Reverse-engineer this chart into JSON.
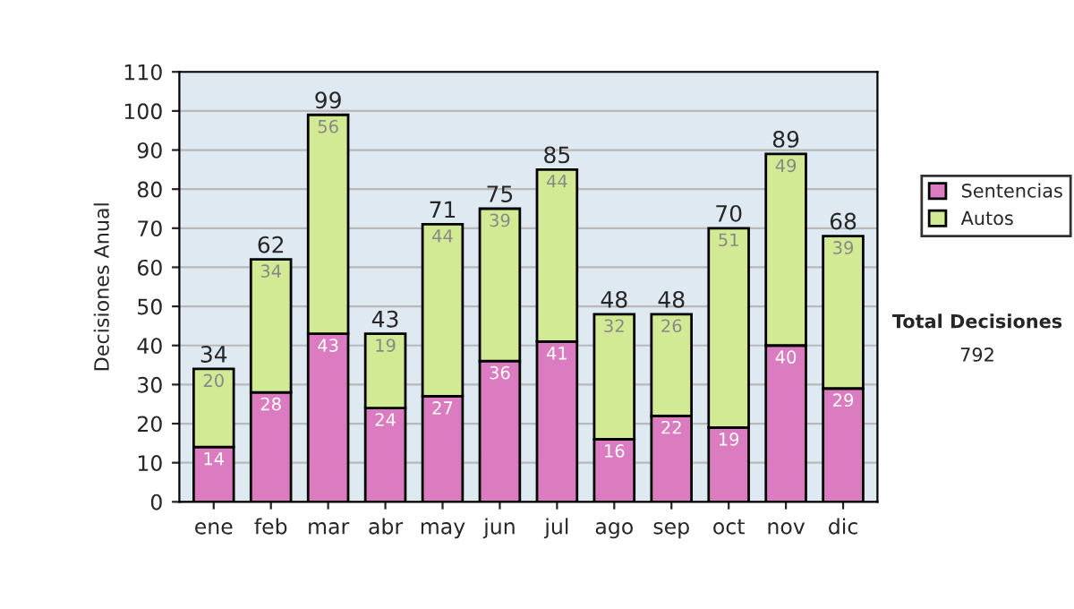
{
  "chart_data": {
    "type": "bar",
    "stacked": true,
    "ylabel": "Decisiones Anual",
    "categories": [
      "ene",
      "feb",
      "mar",
      "abr",
      "may",
      "jun",
      "jul",
      "ago",
      "sep",
      "oct",
      "nov",
      "dic"
    ],
    "series": [
      {
        "name": "Sentencias",
        "color": "#dc7cc0",
        "values": [
          14,
          28,
          43,
          24,
          27,
          36,
          41,
          16,
          22,
          19,
          40,
          29
        ]
      },
      {
        "name": "Autos",
        "color": "#d3ea95",
        "values": [
          20,
          34,
          56,
          19,
          44,
          39,
          44,
          32,
          26,
          51,
          49,
          39
        ]
      }
    ],
    "totals": [
      "34",
      "62",
      "99",
      "43",
      "71",
      "75",
      "85",
      "48",
      "48",
      "70",
      "89",
      "68"
    ],
    "data_labels": true,
    "ylim": [
      0,
      110
    ],
    "yticks": [
      0,
      10,
      20,
      30,
      40,
      50,
      60,
      70,
      80,
      90,
      100,
      110
    ],
    "grid": "y",
    "legend": "right",
    "annotations": [
      "Total Decisiones",
      "792"
    ]
  }
}
